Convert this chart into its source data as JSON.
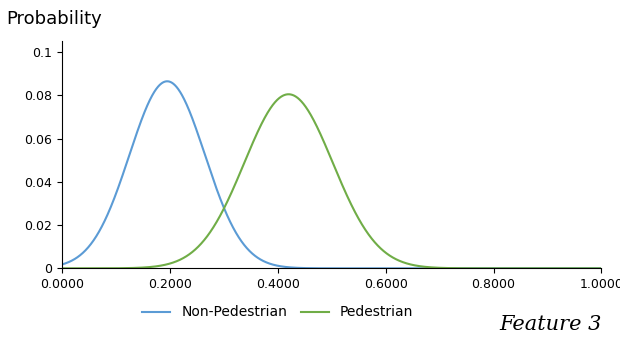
{
  "title": "Probability",
  "feature_label": "Feature 3",
  "xlim": [
    0.0,
    1.0
  ],
  "ylim": [
    0.0,
    0.105
  ],
  "xticks": [
    0.0,
    0.2,
    0.4,
    0.6,
    0.8,
    1.0
  ],
  "xtick_labels": [
    "0.0000",
    "0.2000",
    "0.4000",
    "0.6000",
    "0.8000",
    "1.0000"
  ],
  "yticks": [
    0.0,
    0.02,
    0.04,
    0.06,
    0.08,
    0.1
  ],
  "ytick_labels": [
    "0",
    "0.02",
    "0.04",
    "0.06",
    "0.08",
    "0.1"
  ],
  "non_ped": {
    "mean": 0.195,
    "std": 0.07,
    "peak": 0.0865,
    "color": "#5B9BD5",
    "label": "Non-Pedestrian"
  },
  "ped": {
    "mean": 0.42,
    "std": 0.082,
    "peak": 0.0805,
    "color": "#70AD47",
    "label": "Pedestrian"
  },
  "background_color": "#ffffff",
  "title_fontsize": 13,
  "tick_fontsize": 9,
  "legend_fontsize": 10,
  "feature_fontsize": 15
}
